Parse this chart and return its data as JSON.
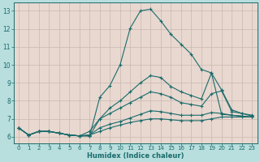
{
  "bg_outer": "#b8dede",
  "bg_inner": "#e8d8d0",
  "grid_color": "#c8b8b0",
  "line_color": "#1a6b6b",
  "xlabel": "Humidex (Indice chaleur)",
  "xlim": [
    -0.5,
    23.5
  ],
  "ylim": [
    5.65,
    13.45
  ],
  "xticks": [
    0,
    1,
    2,
    3,
    4,
    5,
    6,
    7,
    8,
    9,
    10,
    11,
    12,
    13,
    14,
    15,
    16,
    17,
    18,
    19,
    20,
    21,
    22,
    23
  ],
  "yticks": [
    6,
    7,
    8,
    9,
    10,
    11,
    12,
    13
  ],
  "lines": [
    {
      "x": [
        0,
        1,
        2,
        3,
        4,
        5,
        6,
        7,
        8,
        9,
        10,
        11,
        12,
        13,
        14,
        15,
        16,
        17,
        18,
        19,
        20,
        21,
        22,
        23
      ],
      "y": [
        6.5,
        6.1,
        6.3,
        6.3,
        6.2,
        6.1,
        6.05,
        6.05,
        8.2,
        8.85,
        10.0,
        12.05,
        13.0,
        13.1,
        12.45,
        11.7,
        11.15,
        10.6,
        9.75,
        9.55,
        7.25,
        7.2,
        7.15,
        7.1
      ]
    },
    {
      "x": [
        0,
        1,
        2,
        3,
        4,
        5,
        6,
        7,
        8,
        9,
        10,
        11,
        12,
        13,
        14,
        15,
        16,
        17,
        18,
        19,
        20,
        21,
        22,
        23
      ],
      "y": [
        6.5,
        6.1,
        6.3,
        6.3,
        6.2,
        6.1,
        6.05,
        6.05,
        7.0,
        7.6,
        8.0,
        8.5,
        9.0,
        9.4,
        9.3,
        8.8,
        8.5,
        8.3,
        8.1,
        9.55,
        8.6,
        7.5,
        7.3,
        7.2
      ]
    },
    {
      "x": [
        0,
        1,
        2,
        3,
        4,
        5,
        6,
        7,
        8,
        9,
        10,
        11,
        12,
        13,
        14,
        15,
        16,
        17,
        18,
        19,
        20,
        21,
        22,
        23
      ],
      "y": [
        6.5,
        6.1,
        6.3,
        6.3,
        6.2,
        6.1,
        6.05,
        6.3,
        7.0,
        7.3,
        7.6,
        7.9,
        8.2,
        8.5,
        8.4,
        8.2,
        7.9,
        7.8,
        7.7,
        8.4,
        8.55,
        7.4,
        7.3,
        7.15
      ]
    },
    {
      "x": [
        0,
        1,
        2,
        3,
        4,
        5,
        6,
        7,
        8,
        9,
        10,
        11,
        12,
        13,
        14,
        15,
        16,
        17,
        18,
        19,
        20,
        21,
        22,
        23
      ],
      "y": [
        6.5,
        6.1,
        6.3,
        6.3,
        6.2,
        6.1,
        6.05,
        6.1,
        6.5,
        6.7,
        6.85,
        7.05,
        7.25,
        7.45,
        7.4,
        7.3,
        7.2,
        7.2,
        7.2,
        7.35,
        7.3,
        7.2,
        7.15,
        7.1
      ]
    },
    {
      "x": [
        0,
        1,
        2,
        3,
        4,
        5,
        6,
        7,
        8,
        9,
        10,
        11,
        12,
        13,
        14,
        15,
        16,
        17,
        18,
        19,
        20,
        21,
        22,
        23
      ],
      "y": [
        6.5,
        6.1,
        6.3,
        6.3,
        6.2,
        6.1,
        6.05,
        6.1,
        6.3,
        6.5,
        6.65,
        6.8,
        6.9,
        7.0,
        7.0,
        6.95,
        6.9,
        6.9,
        6.9,
        7.0,
        7.1,
        7.1,
        7.1,
        7.1
      ]
    }
  ]
}
